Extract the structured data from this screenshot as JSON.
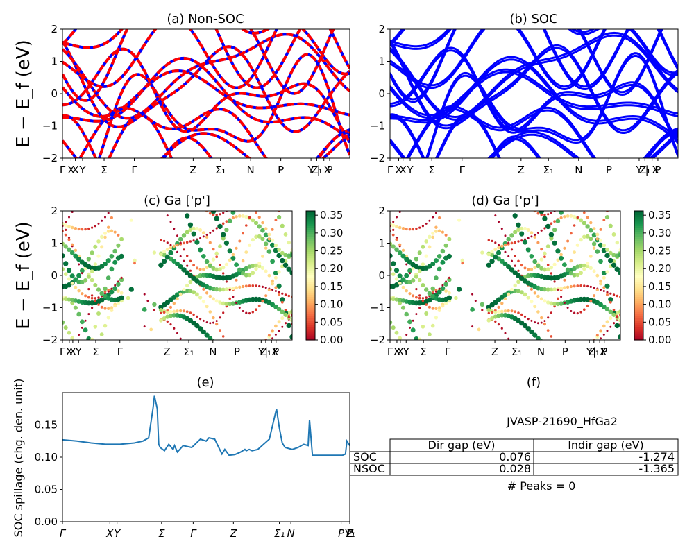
{
  "figure_id": "JVASP-21690_HfGa2",
  "kpath_labels": [
    "Γ",
    "X",
    "X",
    "Y",
    "Σ",
    "Γ",
    "Z",
    "Σ",
    "N",
    "P",
    "Y",
    "Z",
    "|",
    "X",
    "P"
  ],
  "kpath_subscripts": {
    "Σ1": "1",
    "Y1": "1",
    "Z1": "1"
  },
  "colorbar": {
    "min": 0.0,
    "max": 0.35,
    "ticks": [
      "0.00",
      "0.05",
      "0.10",
      "0.15",
      "0.20",
      "0.25",
      "0.30",
      "0.35"
    ],
    "colormap": "RdYlGn"
  },
  "colors": {
    "nonsoc": "#ff0000",
    "nonsoc_dash": "#0000ff",
    "soc": "#0000ff",
    "spillage": "#1f77b4"
  },
  "chart_data": [
    {
      "id": "a",
      "type": "line",
      "title": "(a) Non-SOC",
      "ylabel": "E − E_f (eV)",
      "ylim": [
        -2,
        2
      ],
      "yticks": [
        "2",
        "1",
        "0",
        "−1",
        "−2"
      ],
      "xticks": [
        "Γ",
        "X",
        "X",
        "Y",
        "Σ",
        "Γ",
        "Z",
        "Σ₁",
        "N",
        "P",
        "Y",
        "Z₁",
        "| X",
        "P"
      ]
    },
    {
      "id": "b",
      "type": "line",
      "title": "(b) SOC",
      "ylim": [
        -2,
        2
      ],
      "yticks": [
        "2",
        "1",
        "0",
        "−1",
        "−2"
      ],
      "xticks": [
        "Γ",
        "X",
        "X",
        "Y",
        "Σ",
        "Γ",
        "Z",
        "Σ₁",
        "N",
        "P",
        "Y",
        "Z₁",
        "| X",
        "P"
      ]
    },
    {
      "id": "c",
      "type": "scatter",
      "title": "(c)  Ga ['p']",
      "ylabel": "E − E_f (eV)",
      "ylim": [
        -2,
        2
      ],
      "yticks": [
        "2",
        "1",
        "0",
        "−1",
        "−2"
      ],
      "xticks": [
        "Γ",
        "X",
        "X",
        "Y",
        "Σ",
        "Γ",
        "Z",
        "Σ₁",
        "N",
        "P",
        "Y",
        "Z₁",
        "| X",
        "P"
      ]
    },
    {
      "id": "d",
      "type": "scatter",
      "title": "(d) Ga ['p']",
      "ylim": [
        -2,
        2
      ],
      "yticks": [
        "2",
        "1",
        "0",
        "−1",
        "−2"
      ],
      "xticks": [
        "Γ",
        "X",
        "X",
        "Y",
        "Σ",
        "Γ",
        "Z",
        "Σ₁",
        "N",
        "P",
        "Y",
        "Z₁",
        "| X",
        "P"
      ]
    },
    {
      "id": "e",
      "type": "line",
      "title": "(e)",
      "ylabel": "SOC spillage (chg. den. unit)",
      "ylim": [
        0,
        0.2
      ],
      "yticks": [
        "0.00",
        "0.05",
        "0.10",
        "0.15"
      ],
      "xticks": [
        "Γ",
        "X",
        "Y",
        "Σ",
        "Γ",
        "Z",
        "Σ₁",
        "N",
        "P",
        "Y₁",
        "Z",
        "P"
      ],
      "series": [
        {
          "x": [
            0,
            0.05,
            0.1,
            0.15,
            0.2,
            0.25,
            0.28,
            0.3,
            0.315,
            0.32,
            0.33,
            0.335,
            0.34,
            0.355,
            0.37,
            0.385,
            0.39,
            0.4,
            0.42,
            0.45,
            0.48,
            0.5,
            0.51,
            0.53,
            0.555,
            0.565,
            0.58,
            0.6,
            0.62,
            0.635,
            0.64,
            0.65,
            0.66,
            0.68,
            0.7,
            0.72,
            0.745,
            0.755,
            0.765,
            0.775,
            0.8,
            0.82,
            0.84,
            0.855,
            0.86,
            0.87,
            0.9,
            0.95,
            0.975,
            0.985,
            0.99,
            1.0
          ],
          "y": [
            0.127,
            0.125,
            0.122,
            0.12,
            0.12,
            0.122,
            0.125,
            0.13,
            0.175,
            0.195,
            0.175,
            0.12,
            0.115,
            0.11,
            0.12,
            0.112,
            0.118,
            0.108,
            0.118,
            0.115,
            0.128,
            0.125,
            0.13,
            0.128,
            0.105,
            0.112,
            0.103,
            0.104,
            0.108,
            0.112,
            0.11,
            0.112,
            0.11,
            0.112,
            0.12,
            0.128,
            0.175,
            0.145,
            0.122,
            0.115,
            0.112,
            0.115,
            0.12,
            0.118,
            0.158,
            0.103,
            0.103,
            0.103,
            0.103,
            0.105,
            0.125,
            0.118
          ]
        }
      ]
    }
  ],
  "table_panel": {
    "title": "(f)",
    "caption": "JVASP-21690_HfGa2",
    "columns": [
      "Dir gap (eV)",
      "Indir gap (eV)"
    ],
    "rows": [
      {
        "label": "SOC",
        "dir": "0.076",
        "indir": "-1.274"
      },
      {
        "label": "NSOC",
        "dir": "0.028",
        "indir": "-1.365"
      }
    ],
    "footer": "# Peaks = 0"
  }
}
